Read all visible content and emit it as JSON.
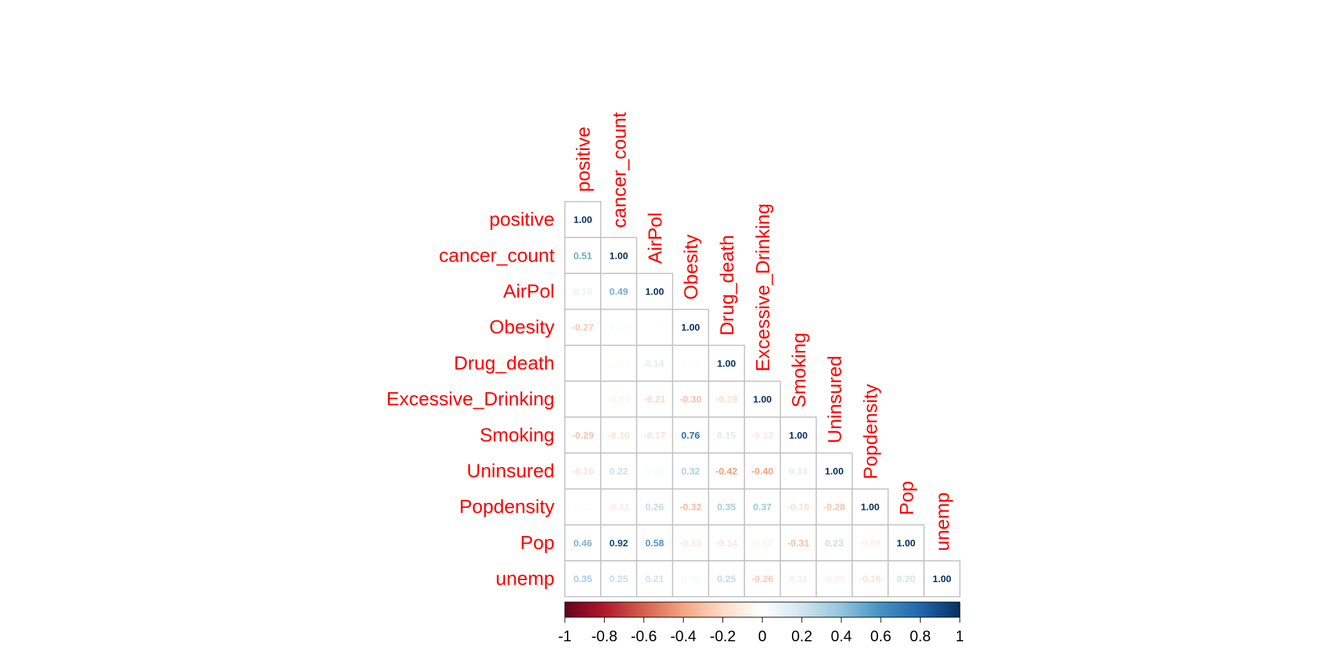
{
  "chart_data": {
    "type": "heatmap",
    "variables": [
      "positive",
      "cancer_count",
      "AirPol",
      "Obesity",
      "Drug_death",
      "Excessive_Drinking",
      "Smoking",
      "Uninsured",
      "Popdensity",
      "Pop",
      "unemp"
    ],
    "matrix": [
      [
        1.0
      ],
      [
        0.51,
        1.0
      ],
      [
        0.1,
        0.49,
        1.0
      ],
      [
        -0.27,
        0.03,
        0.01,
        1.0
      ],
      [
        null,
        -0.03,
        0.14,
        0.03,
        1.0
      ],
      [
        null,
        -0.07,
        -0.21,
        -0.3,
        -0.19,
        1.0
      ],
      [
        -0.29,
        -0.16,
        -0.17,
        0.76,
        0.15,
        -0.13,
        1.0
      ],
      [
        -0.16,
        0.22,
        0.05,
        0.32,
        -0.42,
        -0.4,
        0.14,
        1.0
      ],
      [
        0.02,
        -0.11,
        0.26,
        -0.32,
        0.35,
        0.37,
        -0.18,
        -0.28,
        1.0
      ],
      [
        0.46,
        0.92,
        0.58,
        -0.13,
        -0.14,
        -0.07,
        -0.31,
        0.23,
        -0.09,
        1.0
      ],
      [
        0.35,
        0.25,
        0.21,
        0.05,
        0.25,
        -0.26,
        0.11,
        -0.09,
        -0.16,
        0.2,
        1.0
      ]
    ],
    "colorbar": {
      "ticks": [
        "-1",
        "-0.8",
        "-0.6",
        "-0.4",
        "-0.2",
        "0",
        "0.2",
        "0.4",
        "0.6",
        "0.8",
        "1"
      ],
      "range": [
        -1,
        1
      ]
    },
    "colors": {
      "label": "#ff0000",
      "grid": "#bebebe",
      "strong_negative": "#67001f",
      "neutral": "#ffffff",
      "strong_positive": "#053061"
    }
  }
}
